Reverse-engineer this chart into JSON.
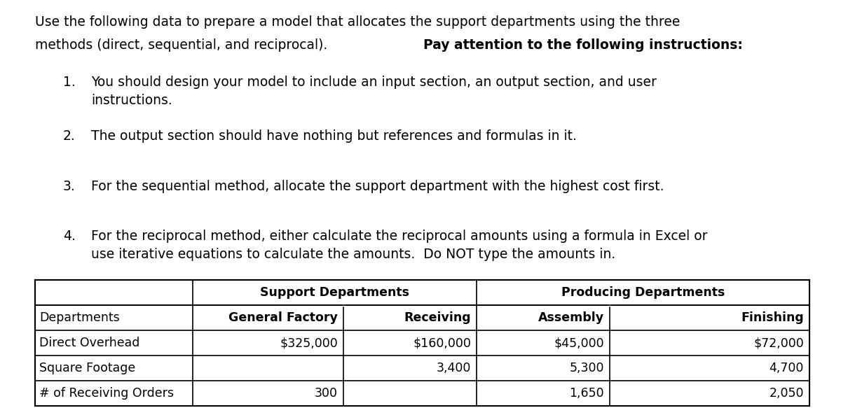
{
  "intro_line1": "Use the following data to prepare a model that allocates the support departments using the three",
  "intro_line2_normal": "methods (direct, sequential, and reciprocal).  ",
  "intro_line2_bold": "Pay attention to the following instructions:",
  "instructions": [
    {
      "number": "1.",
      "line1": "You should design your model to include an input section, an output section, and user",
      "line2": "instructions."
    },
    {
      "number": "2.",
      "line1": "The output section should have nothing but references and formulas in it.",
      "line2": null
    },
    {
      "number": "3.",
      "line1": "For the sequential method, allocate the support department with the highest cost first.",
      "line2": null
    },
    {
      "number": "4.",
      "line1": "For the reciprocal method, either calculate the reciprocal amounts using a formula in Excel or",
      "line2": "use iterative equations to calculate the amounts.  Do NOT type the amounts in."
    }
  ],
  "table_header1_support": "Support Departments",
  "table_header1_producing": "Producing Departments",
  "table_header2": [
    "Departments",
    "General Factory",
    "Receiving",
    "Assembly",
    "Finishing"
  ],
  "table_rows": [
    [
      "Direct Overhead",
      "$325,000",
      "$160,000",
      "$45,000",
      "$72,000"
    ],
    [
      "Square Footage",
      "",
      "3,400",
      "5,300",
      "4,700"
    ],
    [
      "# of Receiving Orders",
      "300",
      "",
      "1,650",
      "2,050"
    ]
  ],
  "font_size": 13.5,
  "font_size_table": 12.5,
  "bg_color": "#ffffff",
  "text_color": "#000000"
}
